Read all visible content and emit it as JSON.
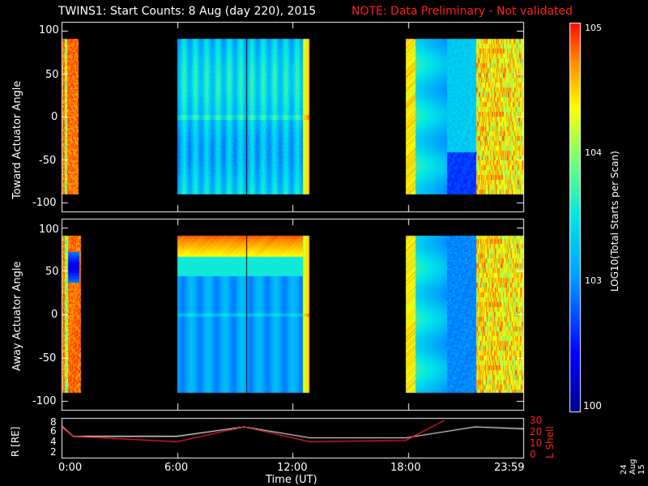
{
  "header": {
    "title": "TWINS1: Start Counts:  8 Aug (day 220), 2015",
    "note": "NOTE: Data Preliminary - Not validated"
  },
  "date_stamp": "24 Aug 15",
  "chart_data": [
    {
      "type": "heatmap",
      "name": "toward",
      "ylabel": "Toward Actuator Angle",
      "yticks": [
        "100",
        "50",
        "0",
        "-50",
        "-100"
      ],
      "ylim": [
        -110,
        110
      ],
      "data_blocks": [
        {
          "start_h": 0.0,
          "end_h": 0.9,
          "level": "high"
        },
        {
          "start_h": 6.0,
          "end_h": 12.9,
          "level": "medium"
        },
        {
          "start_h": 17.9,
          "end_h": 24.0,
          "level": "mixed"
        }
      ]
    },
    {
      "type": "heatmap",
      "name": "away",
      "ylabel": "Away Actuator Angle",
      "yticks": [
        "100",
        "50",
        "0",
        "-50",
        "-100"
      ],
      "ylim": [
        -110,
        110
      ],
      "data_blocks": [
        {
          "start_h": 0.0,
          "end_h": 1.0,
          "level": "high"
        },
        {
          "start_h": 6.0,
          "end_h": 12.9,
          "level": "medium"
        },
        {
          "start_h": 17.9,
          "end_h": 24.0,
          "level": "mixed"
        }
      ]
    },
    {
      "type": "line",
      "name": "orbit",
      "ylabel_left": "R [RE]",
      "ylabel_right": "L Shell",
      "xlabel": "Time (UT)",
      "xticks": [
        "0:00",
        "6:00",
        "12:00",
        "18:00",
        "23:59"
      ],
      "left_ticks": [
        "8",
        "6",
        "4",
        "2"
      ],
      "right_ticks": [
        "30",
        "20",
        "10",
        "0"
      ],
      "series": [
        {
          "color": "#ffffff",
          "points": [
            [
              0,
              7.4
            ],
            [
              0.6,
              5.3
            ],
            [
              6,
              5.3
            ],
            [
              9.5,
              7.2
            ],
            [
              12.9,
              5.0
            ],
            [
              17.9,
              5.0
            ],
            [
              21.5,
              7.2
            ],
            [
              24,
              6.8
            ]
          ]
        },
        {
          "color": "#ff2020",
          "points": [
            [
              0,
              7.2
            ],
            [
              0.6,
              5.3
            ],
            [
              6,
              4.2
            ],
            [
              9.5,
              7.2
            ],
            [
              12.9,
              4.2
            ],
            [
              17.9,
              4.5
            ],
            [
              19.9,
              8.5
            ]
          ]
        }
      ]
    }
  ],
  "colorbar": {
    "label": "LOG10(Total Starts per Scan)",
    "ticks": [
      "105",
      "104",
      "103",
      "100"
    ]
  }
}
